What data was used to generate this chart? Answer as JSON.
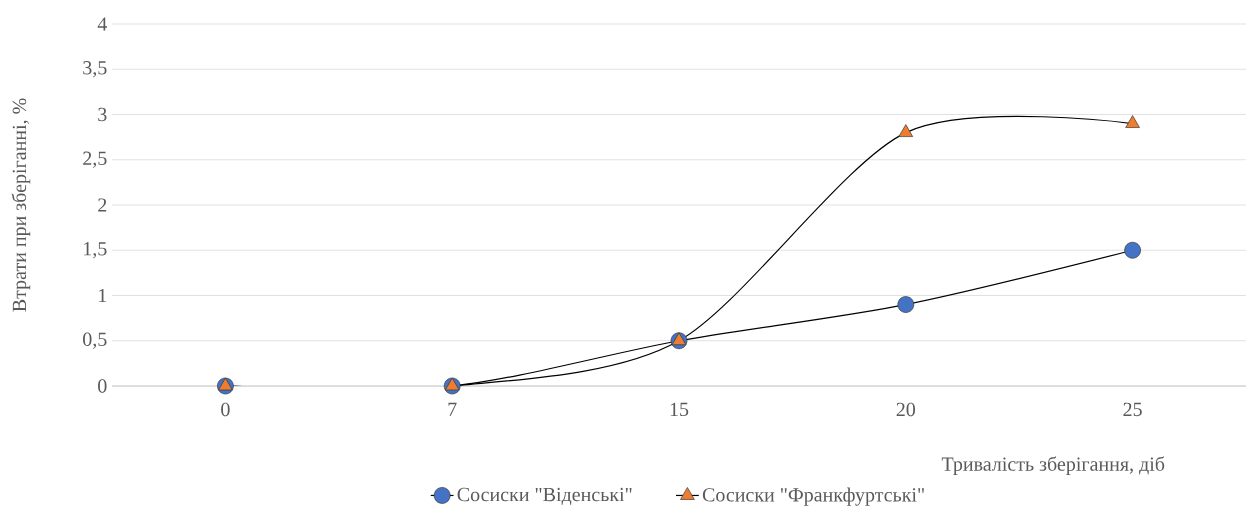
{
  "chart_data": {
    "type": "line",
    "xlabel": "Тривалість зберігання, діб",
    "ylabel": "Втрати при зберіганні, %",
    "categories": [
      "0",
      "7",
      "15",
      "20",
      "25"
    ],
    "series": [
      {
        "name": "Сосиски \"Віденські\"",
        "color": "#4472c4",
        "marker": "circle",
        "values": [
          0,
          0,
          0.5,
          0.9,
          1.5
        ]
      },
      {
        "name": "Сосиски \"Франкфуртські\"",
        "color": "#ed7d31",
        "marker": "triangle",
        "values": [
          0,
          0,
          0.5,
          2.8,
          2.9
        ]
      }
    ],
    "ylim": [
      0,
      4
    ],
    "yticks": [
      0,
      {
        "value": 0.5,
        "label": "0,5"
      },
      1,
      {
        "value": 1.5,
        "label": "1,5"
      },
      2,
      {
        "value": 2.5,
        "label": "2,5"
      },
      3,
      {
        "value": 3.5,
        "label": "3,5"
      },
      4
    ],
    "grid": "y",
    "legend": "bottom",
    "line_style": "solid"
  }
}
